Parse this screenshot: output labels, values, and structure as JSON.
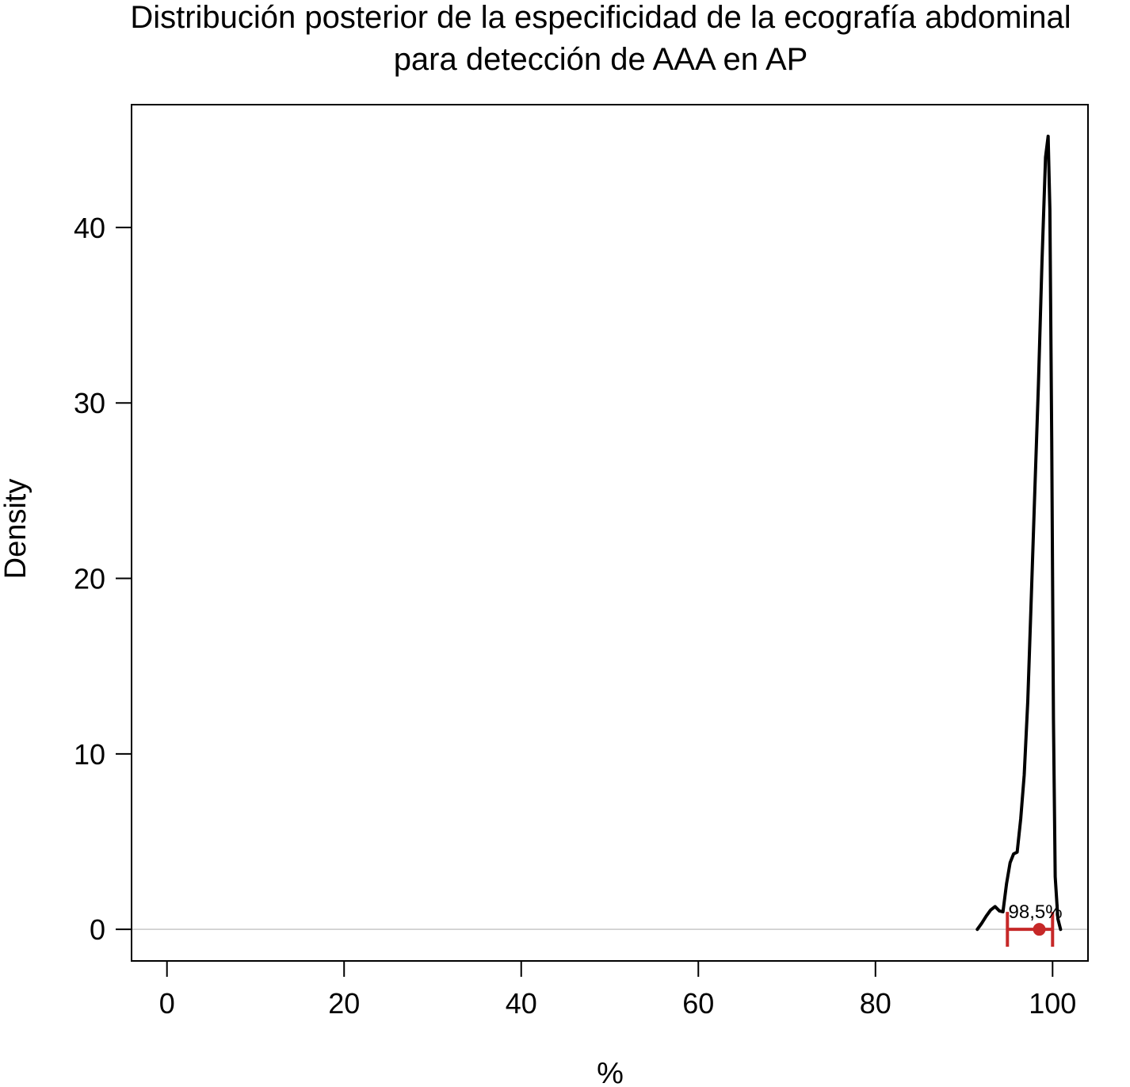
{
  "chart_data": {
    "type": "line",
    "title_lines": [
      "Distribución posterior de la especificidad de la ecografía abdominal",
      "para detección de AAA en AP"
    ],
    "xlabel": "%",
    "ylabel": "Density",
    "xlim": [
      -4,
      104
    ],
    "ylim": [
      -1.8,
      47
    ],
    "x_ticks": [
      0,
      20,
      40,
      60,
      80,
      100
    ],
    "x_tick_labels": [
      "0",
      "20",
      "40",
      "60",
      "80",
      "100"
    ],
    "y_ticks": [
      0,
      10,
      20,
      30,
      40
    ],
    "y_tick_labels": [
      "0",
      "10",
      "20",
      "30",
      "40"
    ],
    "grid": false,
    "legend": "none",
    "baseline": 0,
    "series": [
      {
        "x": [
          91.5,
          92.0,
          92.5,
          93.0,
          93.5,
          94.0,
          94.4,
          94.8,
          95.2,
          95.6,
          96.0,
          96.4,
          96.8,
          97.2,
          97.6,
          98.0,
          98.4,
          98.8,
          99.2,
          99.5,
          99.7,
          99.9,
          100.1,
          100.3,
          100.6,
          100.9
        ],
        "y": [
          0.0,
          0.35,
          0.75,
          1.1,
          1.3,
          1.05,
          1.0,
          2.6,
          3.8,
          4.3,
          4.4,
          6.3,
          8.8,
          13.0,
          19.0,
          25.0,
          31.0,
          38.0,
          44.0,
          45.2,
          41.0,
          28.0,
          12.0,
          3.0,
          0.6,
          0.0
        ]
      }
    ],
    "interval": {
      "point": 98.5,
      "lower": 94.9,
      "upper": 100.0,
      "label": "98,5%"
    },
    "colors": {
      "curve": "#000000",
      "interval": "#c62828",
      "baseline": "#c8c8c8",
      "frame": "#000000"
    }
  }
}
